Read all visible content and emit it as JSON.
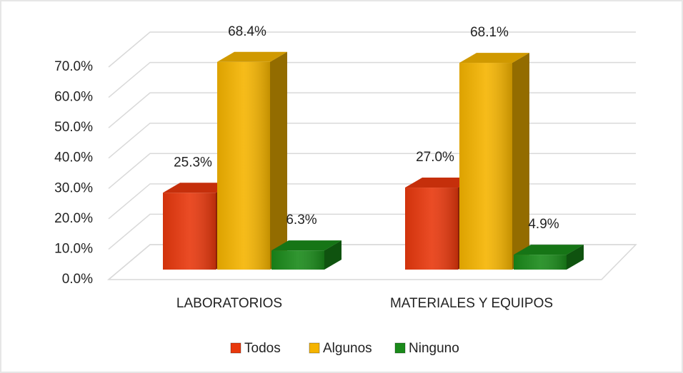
{
  "chart_data": {
    "type": "bar3d",
    "categories": [
      "LABORATORIOS",
      "MATERIALES Y EQUIPOS"
    ],
    "series": [
      {
        "name": "Todos",
        "color": "#e8380d",
        "values": [
          25.3,
          27.0
        ],
        "value_labels": [
          "25.3%",
          "27.0%"
        ]
      },
      {
        "name": "Algunos",
        "color": "#f5b400",
        "values": [
          68.4,
          68.1
        ],
        "value_labels": [
          "68.4%",
          "68.1%"
        ]
      },
      {
        "name": "Ninguno",
        "color": "#1a8a1a",
        "values": [
          6.3,
          4.9
        ],
        "value_labels": [
          "6.3%",
          "4.9%"
        ]
      }
    ],
    "ylim": [
      0,
      70
    ],
    "yticks": [
      {
        "value": 0,
        "label": "0.0%"
      },
      {
        "value": 10,
        "label": "10.0%"
      },
      {
        "value": 20,
        "label": "20.0%"
      },
      {
        "value": 30,
        "label": "30.0%"
      },
      {
        "value": 40,
        "label": "40.0%"
      },
      {
        "value": 50,
        "label": "50.0%"
      },
      {
        "value": 60,
        "label": "60.0%"
      },
      {
        "value": 70,
        "label": "70.0%"
      }
    ],
    "grid": true,
    "legend": "bottom"
  }
}
